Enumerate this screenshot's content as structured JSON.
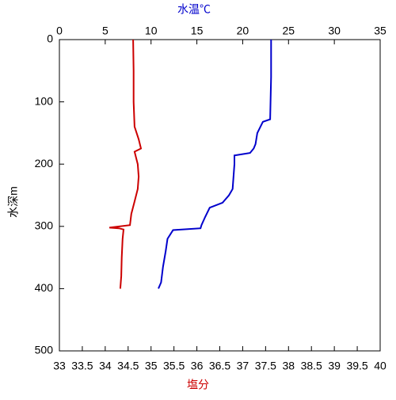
{
  "chart_data": {
    "type": "line",
    "orientation": "vertical-profile",
    "x2label": "水温℃",
    "x2label_color": "#0000cc",
    "xlabel": "塩分",
    "xlabel_color": "#cc0000",
    "ylabel": "水深m",
    "x2lim": [
      0,
      35
    ],
    "x2ticks": [
      0,
      5,
      10,
      15,
      20,
      25,
      30,
      35
    ],
    "xlim": [
      33,
      40
    ],
    "xticks": [
      33,
      33.5,
      34,
      34.5,
      35,
      35.5,
      36,
      36.5,
      37,
      37.5,
      38,
      38.5,
      39,
      39.5,
      40
    ],
    "ylim": [
      0,
      500
    ],
    "yticks": [
      0,
      100,
      200,
      300,
      400,
      500
    ],
    "y_inverted": true,
    "series": [
      {
        "color": "#0000cc",
        "axis": "x2",
        "y": [
          0,
          60,
          128,
          132,
          150,
          168,
          175,
          182,
          186,
          200,
          240,
          250,
          262,
          270,
          285,
          298,
          303,
          306,
          320,
          340,
          365,
          390,
          400
        ],
        "values": [
          23.1,
          23.1,
          23.0,
          22.2,
          21.6,
          21.4,
          21.2,
          20.8,
          19.1,
          19.1,
          18.9,
          18.5,
          17.8,
          16.4,
          15.9,
          15.5,
          15.4,
          12.4,
          11.8,
          11.6,
          11.3,
          11.1,
          10.8
        ]
      },
      {
        "color": "#cc0000",
        "axis": "x",
        "y": [
          0,
          50,
          100,
          140,
          160,
          175,
          180,
          200,
          220,
          240,
          260,
          280,
          298,
          302,
          303,
          305,
          320,
          350,
          380,
          400
        ],
        "values": [
          34.61,
          34.62,
          34.62,
          34.64,
          34.73,
          34.78,
          34.64,
          34.71,
          34.73,
          34.71,
          34.64,
          34.57,
          34.54,
          34.09,
          34.3,
          34.4,
          34.38,
          34.36,
          34.35,
          34.33
        ]
      }
    ]
  }
}
